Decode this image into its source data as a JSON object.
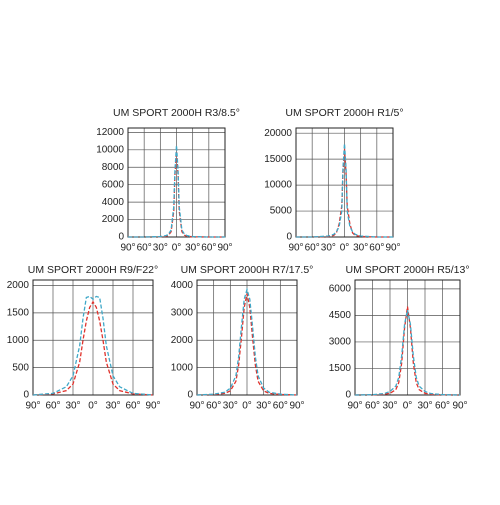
{
  "chart_data": [
    {
      "type": "line",
      "title": "UM SPORT 2000H R3/8.5°",
      "x": [
        -90,
        -60,
        -30,
        -20,
        -15,
        -10,
        -5,
        -3,
        0,
        3,
        5,
        10,
        15,
        20,
        30,
        60,
        90
      ],
      "xlim": [
        -90,
        90
      ],
      "xticks": [
        {
          "value": -90,
          "label": "90°"
        },
        {
          "value": -60,
          "label": "60°"
        },
        {
          "value": -30,
          "label": "30°"
        },
        {
          "value": 0,
          "label": "0°"
        },
        {
          "value": 30,
          "label": "30°"
        },
        {
          "value": 60,
          "label": "60°"
        },
        {
          "value": 90,
          "label": "90°"
        }
      ],
      "ylim": [
        0,
        12500
      ],
      "yticks": [
        0,
        2000,
        4000,
        6000,
        8000,
        10000,
        12000
      ],
      "grid": true,
      "series": [
        {
          "color": "#e0322c",
          "values": [
            0,
            0,
            20,
            80,
            200,
            600,
            3000,
            7000,
            9800,
            7000,
            3000,
            600,
            200,
            80,
            20,
            0,
            0
          ]
        },
        {
          "color": "#3fa8c8",
          "values": [
            0,
            0,
            50,
            150,
            300,
            800,
            3500,
            7500,
            10500,
            7500,
            3500,
            800,
            300,
            150,
            50,
            0,
            0
          ]
        }
      ]
    },
    {
      "type": "line",
      "title": "UM SPORT 2000H R1/5°",
      "x": [
        -90,
        -60,
        -30,
        -20,
        -15,
        -10,
        -5,
        -3,
        0,
        3,
        5,
        10,
        15,
        20,
        30,
        60,
        90
      ],
      "xlim": [
        -90,
        90
      ],
      "xticks": [
        {
          "value": -90,
          "label": "90°"
        },
        {
          "value": -60,
          "label": "60°"
        },
        {
          "value": -30,
          "label": "30°"
        },
        {
          "value": 0,
          "label": "0°"
        },
        {
          "value": 30,
          "label": "30°"
        },
        {
          "value": 60,
          "label": "60°"
        },
        {
          "value": 90,
          "label": "90°"
        }
      ],
      "ylim": [
        0,
        21000
      ],
      "yticks": [
        0,
        5000,
        10000,
        15000,
        20000
      ],
      "grid": true,
      "series": [
        {
          "color": "#e0322c",
          "values": [
            0,
            0,
            100,
            300,
            800,
            2500,
            6000,
            12000,
            17000,
            12000,
            6000,
            2500,
            800,
            300,
            100,
            0,
            0
          ]
        },
        {
          "color": "#3fa8c8",
          "values": [
            0,
            0,
            200,
            500,
            1000,
            2000,
            5000,
            13000,
            18000,
            13000,
            5000,
            2000,
            1000,
            500,
            200,
            0,
            0
          ]
        }
      ]
    },
    {
      "type": "line",
      "title": "UM SPORT 2000H R9/F22°",
      "x": [
        -90,
        -60,
        -40,
        -30,
        -20,
        -15,
        -10,
        -5,
        0,
        5,
        10,
        15,
        20,
        30,
        40,
        60,
        90
      ],
      "xlim": [
        -90,
        90
      ],
      "xticks": [
        {
          "value": -90,
          "label": "90°"
        },
        {
          "value": -60,
          "label": "60°"
        },
        {
          "value": -30,
          "label": "30°"
        },
        {
          "value": 0,
          "label": "0°"
        },
        {
          "value": 30,
          "label": "30°"
        },
        {
          "value": 60,
          "label": "60°"
        },
        {
          "value": 90,
          "label": "90°"
        }
      ],
      "ylim": [
        0,
        2100
      ],
      "yticks": [
        0,
        500,
        1000,
        1500,
        2000
      ],
      "grid": true,
      "series": [
        {
          "color": "#e0322c",
          "values": [
            0,
            20,
            80,
            200,
            600,
            1000,
            1350,
            1600,
            1700,
            1600,
            1350,
            1000,
            600,
            200,
            80,
            20,
            0
          ]
        },
        {
          "color": "#3fa8c8",
          "values": [
            0,
            30,
            150,
            350,
            900,
            1400,
            1780,
            1800,
            1750,
            1800,
            1780,
            1400,
            900,
            350,
            150,
            30,
            0
          ]
        }
      ]
    },
    {
      "type": "line",
      "title": "UM SPORT 2000H R7/17.5°",
      "x": [
        -90,
        -60,
        -40,
        -30,
        -20,
        -15,
        -10,
        -5,
        0,
        5,
        10,
        15,
        20,
        30,
        40,
        60,
        90
      ],
      "xlim": [
        -90,
        90
      ],
      "xticks": [
        {
          "value": -90,
          "label": "90°"
        },
        {
          "value": -60,
          "label": "60°"
        },
        {
          "value": -30,
          "label": "30°"
        },
        {
          "value": 0,
          "label": "0°"
        },
        {
          "value": 30,
          "label": "30°"
        },
        {
          "value": 60,
          "label": "60°"
        },
        {
          "value": 90,
          "label": "90°"
        }
      ],
      "ylim": [
        0,
        4200
      ],
      "yticks": [
        0,
        1000,
        2000,
        3000,
        4000
      ],
      "grid": true,
      "series": [
        {
          "color": "#e0322c",
          "values": [
            0,
            20,
            60,
            150,
            500,
            1100,
            2100,
            3200,
            3700,
            3200,
            2100,
            1100,
            500,
            150,
            60,
            20,
            0
          ]
        },
        {
          "color": "#3fa8c8",
          "values": [
            0,
            30,
            100,
            250,
            700,
            1400,
            2500,
            3500,
            3850,
            3500,
            2500,
            1400,
            700,
            250,
            100,
            30,
            0
          ]
        }
      ]
    },
    {
      "type": "line",
      "title": "UM SPORT 2000H R5/13°",
      "x": [
        -90,
        -60,
        -40,
        -30,
        -20,
        -15,
        -10,
        -5,
        0,
        5,
        10,
        15,
        20,
        30,
        40,
        60,
        90
      ],
      "xlim": [
        -90,
        90
      ],
      "xticks": [
        {
          "value": -90,
          "label": "90°"
        },
        {
          "value": -60,
          "label": "60°"
        },
        {
          "value": -30,
          "label": "30°"
        },
        {
          "value": 0,
          "label": "0°"
        },
        {
          "value": 30,
          "label": "30°"
        },
        {
          "value": 60,
          "label": "60°"
        },
        {
          "value": 90,
          "label": "90°"
        }
      ],
      "ylim": [
        0,
        6500
      ],
      "yticks": [
        0,
        1500,
        3000,
        4500,
        6000
      ],
      "grid": true,
      "series": [
        {
          "color": "#e0322c",
          "values": [
            0,
            10,
            40,
            100,
            300,
            700,
            1800,
            3800,
            5000,
            3800,
            1800,
            700,
            300,
            100,
            40,
            10,
            0
          ]
        },
        {
          "color": "#3fa8c8",
          "values": [
            0,
            20,
            80,
            200,
            500,
            1000,
            2200,
            4000,
            4800,
            4000,
            2200,
            1000,
            500,
            200,
            80,
            20,
            0
          ]
        }
      ]
    }
  ]
}
